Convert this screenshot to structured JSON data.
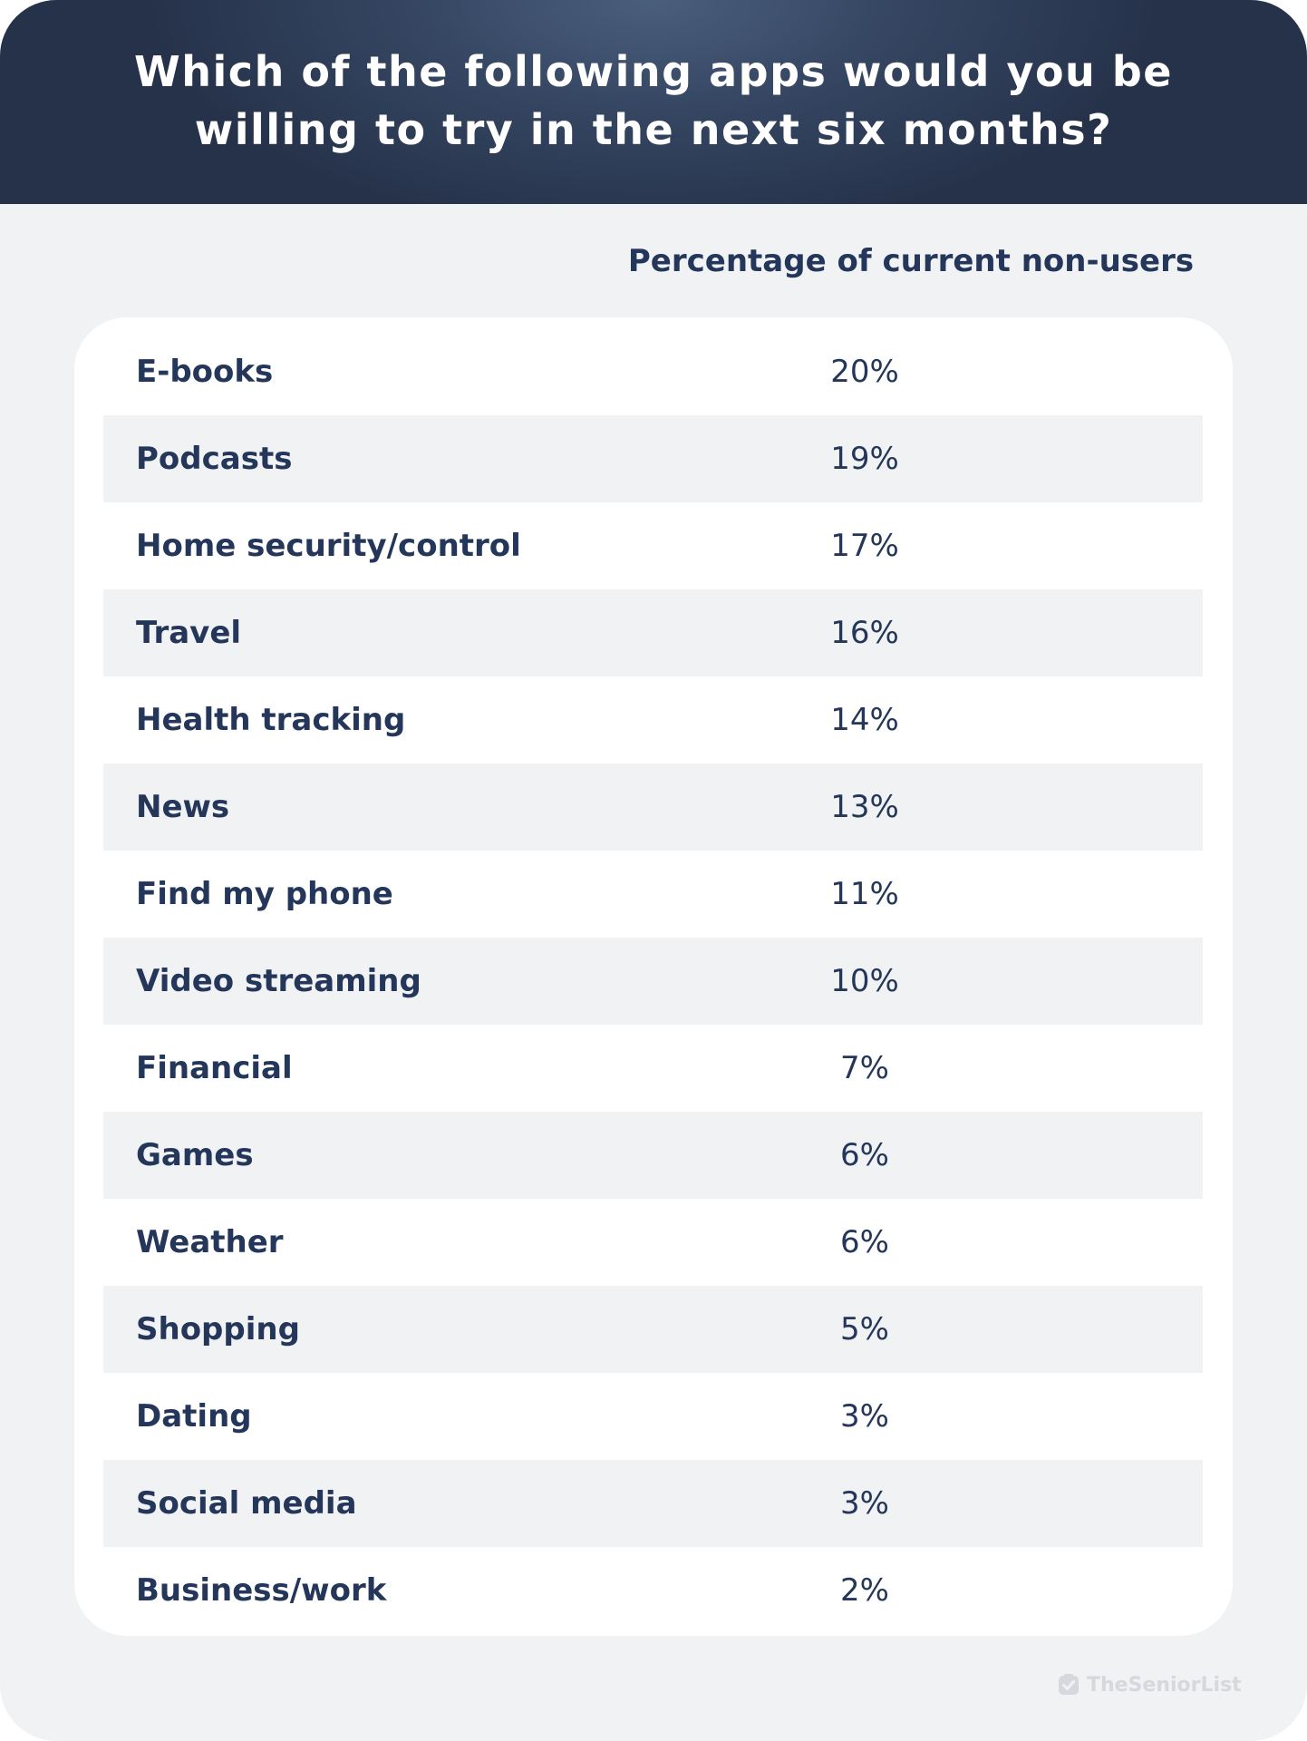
{
  "title": "Which of the following apps would you be willing to try in the next six months?",
  "column_header": "Percentage of current non-users",
  "brand": "TheSeniorList",
  "colors": {
    "header_bg": "#26324a",
    "text": "#24365a",
    "page_bg": "#f1f2f4",
    "panel_bg": "#ffffff"
  },
  "chart_data": {
    "type": "table",
    "title": "Which of the following apps would you be willing to try in the next six months?",
    "columns": [
      "",
      "Percentage of current non-users"
    ],
    "rows": [
      {
        "label": "E-books",
        "value": "20%"
      },
      {
        "label": "Podcasts",
        "value": "19%"
      },
      {
        "label": "Home security/control",
        "value": "17%"
      },
      {
        "label": "Travel",
        "value": "16%"
      },
      {
        "label": "Health tracking",
        "value": "14%"
      },
      {
        "label": "News",
        "value": "13%"
      },
      {
        "label": "Find my phone",
        "value": "11%"
      },
      {
        "label": "Video streaming",
        "value": "10%"
      },
      {
        "label": "Financial",
        "value": "7%"
      },
      {
        "label": "Games",
        "value": "6%"
      },
      {
        "label": "Weather",
        "value": "6%"
      },
      {
        "label": "Shopping",
        "value": "5%"
      },
      {
        "label": "Dating",
        "value": "3%"
      },
      {
        "label": "Social media",
        "value": "3%"
      },
      {
        "label": "Business/work",
        "value": "2%"
      }
    ]
  }
}
